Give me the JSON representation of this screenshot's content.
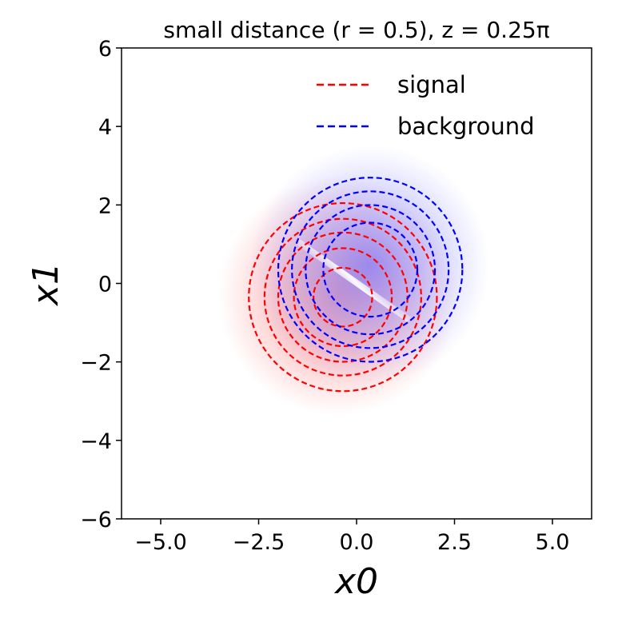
{
  "chart_data": {
    "type": "scatter",
    "title": "small distance (r = 0.5), z = 0.25π",
    "xlabel": "x0",
    "ylabel": "x1",
    "xlim": [
      -6,
      6
    ],
    "ylim": [
      -6,
      6
    ],
    "xticks": [
      -5.0,
      -2.5,
      0.0,
      2.5,
      5.0
    ],
    "xtick_labels": [
      "−5.0",
      "−2.5",
      "0.0",
      "2.5",
      "5.0"
    ],
    "yticks": [
      -6,
      -4,
      -2,
      0,
      2,
      4,
      6
    ],
    "ytick_labels": [
      "−6",
      "−4",
      "−2",
      "0",
      "2",
      "4",
      "6"
    ],
    "grid": false,
    "legend_position": "top-right",
    "series": [
      {
        "name": "signal",
        "color": "#ff0000",
        "linestyle": "dashed",
        "center": [
          -0.35,
          -0.35
        ],
        "contour_radii": [
          0.75,
          1.25,
          1.65,
          2.0,
          2.4
        ]
      },
      {
        "name": "background",
        "color": "#0000ff",
        "linestyle": "dashed",
        "center": [
          0.35,
          0.35
        ],
        "contour_radii": [
          1.2,
          1.65,
          2.0,
          2.35
        ]
      }
    ],
    "background_map": {
      "type": "heatmap",
      "colormap": "bwr",
      "description_colors": [
        "#ff0000",
        "#ffffff",
        "#0000ff"
      ]
    }
  }
}
